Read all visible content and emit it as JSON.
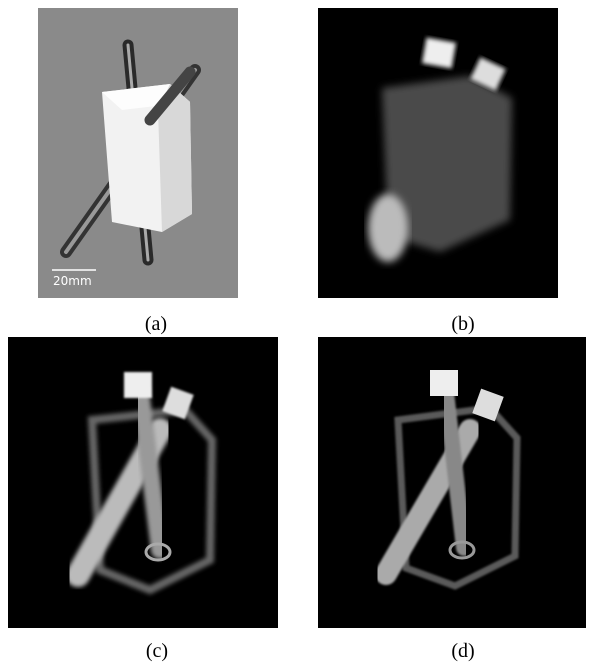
{
  "figure": {
    "panels": [
      {
        "label": "(a)",
        "scale_bar": "20mm"
      },
      {
        "label": "(b)"
      },
      {
        "label": "(c)"
      },
      {
        "label": "(d)"
      }
    ]
  }
}
